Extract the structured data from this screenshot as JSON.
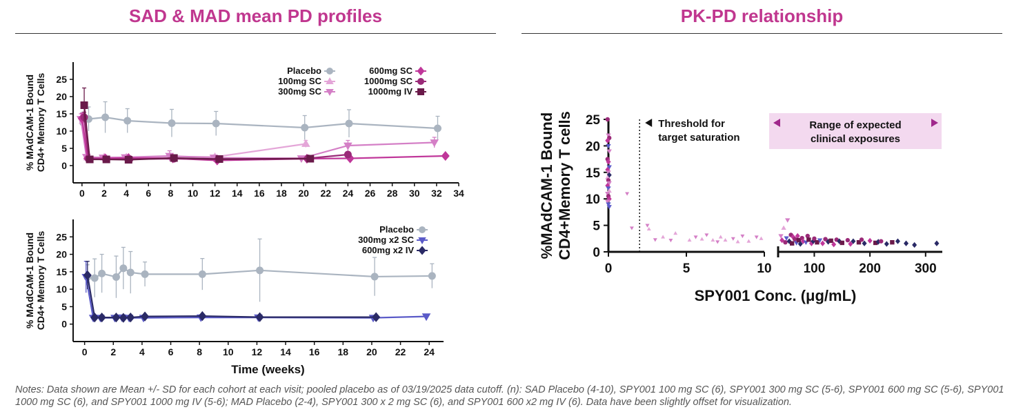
{
  "titles": {
    "left": "SAD & MAD mean PD profiles",
    "right": "PK-PD relationship"
  },
  "colors": {
    "title": "#c0378f",
    "placebo": "#aab4c0",
    "sc100": "#e4a6d8",
    "sc300": "#d47fc6",
    "sc600": "#c0379a",
    "sc1000": "#9a2a78",
    "iv1000": "#6a1a4a",
    "mad300": "#5a5ac8",
    "mad600": "#2a2a66",
    "band": "#f3d9ef",
    "band_arrow": "#a0288c"
  },
  "notes": "Notes: Data shown are Mean +/- SD for each cohort at each visit; pooled placebo as of 03/19/2025 data cutoff. (n): SAD Placebo (4-10), SPY001 100 mg SC (6), SPY001 300 mg SC (5-6), SPY001 600 mg SC (5-6), SPY001 1000 mg SC (6), and SPY001 1000 mg IV (5-6); MAD Placebo (2-4), SPY001 300 x 2 mg SC (6), and SPY001 600 x2 mg IV (6). Data have been slightly offset for visualization.",
  "chart_data": [
    {
      "id": "sad",
      "type": "line",
      "title": "SAD & MAD mean PD profiles",
      "ylabel_line1": "% MAdCAM-1 Bound",
      "ylabel_line2": "CD4+ Memory T Cells",
      "xlabel": "",
      "xlim": [
        -0.8,
        34
      ],
      "ylim": [
        -5,
        30
      ],
      "x_ticks": [
        0,
        2,
        4,
        6,
        8,
        10,
        12,
        14,
        16,
        18,
        20,
        22,
        24,
        26,
        28,
        30,
        32,
        34
      ],
      "y_ticks": [
        0,
        5,
        10,
        15,
        20,
        25
      ],
      "legend": [
        {
          "label": "Placebo",
          "series": "placebo"
        },
        {
          "label": "600mg SC",
          "series": "sc600"
        },
        {
          "label": "100mg SC",
          "series": "sc100"
        },
        {
          "label": "1000mg SC",
          "series": "sc1000"
        },
        {
          "label": "300mg SC",
          "series": "sc300"
        },
        {
          "label": "1000mg IV",
          "series": "iv1000"
        }
      ],
      "series": [
        {
          "key": "placebo",
          "name": "Placebo",
          "marker": "circle",
          "x": [
            0.1,
            0.6,
            2.1,
            4.1,
            8.1,
            12.1,
            20.1,
            24.1,
            32.1
          ],
          "y": [
            12.5,
            13.5,
            14.0,
            13.0,
            12.3,
            12.2,
            11.0,
            12.2,
            10.8
          ],
          "sd": [
            3.0,
            3.5,
            4.5,
            3.5,
            4.0,
            3.5,
            3.5,
            4.0,
            3.5
          ]
        },
        {
          "key": "sc100",
          "name": "100mg SC",
          "marker": "triangle-up",
          "x": [
            0.1,
            0.5,
            2.0,
            4.0,
            8.0,
            12.0,
            20.2
          ],
          "y": [
            13.0,
            2.4,
            2.4,
            2.4,
            2.6,
            2.5,
            6.3
          ],
          "sd": [
            1.5,
            0.6,
            0.6,
            0.6,
            0.8,
            0.6,
            1.0
          ]
        },
        {
          "key": "sc300",
          "name": "300mg SC",
          "marker": "triangle-down",
          "x": [
            -0.1,
            0.4,
            1.9,
            3.9,
            7.9,
            11.9,
            19.8,
            24.0,
            31.8
          ],
          "y": [
            13.5,
            2.5,
            2.3,
            2.4,
            2.8,
            2.3,
            2.1,
            5.8,
            6.7
          ],
          "sd": [
            1.5,
            0.6,
            0.6,
            0.5,
            1.5,
            0.6,
            0.5,
            1.5,
            1.5
          ]
        },
        {
          "key": "sc600",
          "name": "600mg SC",
          "marker": "diamond",
          "x": [
            0.0,
            0.5,
            2.1,
            4.2,
            8.2,
            12.2,
            20.3,
            24.2,
            32.8
          ],
          "y": [
            13.7,
            2.1,
            2.1,
            2.2,
            2.1,
            1.5,
            2.0,
            2.1,
            2.8
          ],
          "sd": [
            1.5,
            0.5,
            0.5,
            0.5,
            0.5,
            0.5,
            0.5,
            0.5,
            0.5
          ]
        },
        {
          "key": "sc1000",
          "name": "1000mg SC",
          "marker": "circle",
          "x": [
            0.2,
            0.6,
            2.2,
            4.3,
            8.3,
            12.3,
            20.4,
            24.0
          ],
          "y": [
            14.0,
            1.9,
            1.8,
            1.9,
            2.0,
            1.8,
            2.1,
            3.2
          ],
          "sd": [
            1.5,
            0.5,
            0.5,
            0.5,
            0.5,
            0.5,
            0.5,
            0.8
          ]
        },
        {
          "key": "iv1000",
          "name": "1000mg IV",
          "marker": "square",
          "x": [
            0.2,
            0.7,
            2.2,
            4.2,
            8.3,
            12.4,
            20.6
          ],
          "y": [
            17.5,
            1.8,
            1.8,
            1.7,
            2.2,
            1.9,
            2.0
          ],
          "sd": [
            5.0,
            0.5,
            0.5,
            0.5,
            0.5,
            0.5,
            0.5
          ]
        }
      ]
    },
    {
      "id": "mad",
      "type": "line",
      "title": "",
      "ylabel_line1": "% MAdCAM-1 Bound",
      "ylabel_line2": "CD4+ Memory T Cells",
      "xlabel": "Time (weeks)",
      "xlim": [
        -0.8,
        25
      ],
      "ylim": [
        -5,
        30
      ],
      "x_ticks": [
        0,
        2,
        4,
        6,
        8,
        10,
        12,
        14,
        16,
        18,
        20,
        22,
        24
      ],
      "y_ticks": [
        0,
        5,
        10,
        15,
        20,
        25
      ],
      "legend": [
        {
          "label": "Placebo",
          "series": "placebo"
        },
        {
          "label": "300mg x2 SC",
          "series": "mad300"
        },
        {
          "label": "600mg x2 IV",
          "series": "mad600"
        }
      ],
      "series": [
        {
          "key": "placebo",
          "name": "Placebo",
          "marker": "circle",
          "x": [
            0.2,
            0.7,
            1.2,
            2.2,
            2.7,
            3.2,
            4.2,
            8.2,
            12.2,
            20.2,
            24.2
          ],
          "y": [
            13.5,
            13.2,
            14.5,
            13.5,
            16.0,
            14.8,
            14.3,
            14.3,
            15.4,
            13.6,
            13.8
          ],
          "sd": [
            3.5,
            5.5,
            5.5,
            6.0,
            6.0,
            6.0,
            3.5,
            4.5,
            9.0,
            5.5,
            3.5
          ]
        },
        {
          "key": "mad300",
          "name": "300mg x2 SC",
          "marker": "triangle-down",
          "x": [
            0.1,
            0.6,
            1.1,
            2.1,
            2.6,
            3.1,
            4.1,
            8.1,
            12.1,
            20.1,
            23.8
          ],
          "y": [
            13.5,
            1.8,
            1.8,
            1.8,
            1.9,
            1.8,
            1.8,
            1.9,
            1.9,
            1.8,
            2.2
          ],
          "sd": [
            4.5,
            0.5,
            0.5,
            0.5,
            0.5,
            0.5,
            0.5,
            0.5,
            0.5,
            0.5,
            0.5
          ]
        },
        {
          "key": "mad600",
          "name": "600mg x2 IV",
          "marker": "diamond",
          "x": [
            0.2,
            0.7,
            1.2,
            2.2,
            2.7,
            3.2,
            4.2,
            8.2,
            12.2,
            20.3
          ],
          "y": [
            14.0,
            1.9,
            1.9,
            1.9,
            1.8,
            1.9,
            2.2,
            2.3,
            2.0,
            2.0
          ],
          "sd": [
            4.0,
            0.5,
            0.5,
            0.5,
            0.5,
            0.5,
            0.5,
            0.5,
            0.5,
            0.5
          ]
        }
      ]
    },
    {
      "id": "pkpd",
      "type": "scatter",
      "title": "PK-PD relationship",
      "ylabel_line1": "%MAdCAM-1 Bound",
      "ylabel_line2": "CD4+Memory T cells",
      "xlabel": "SPY001 Conc. (μg/mL)",
      "segment1": {
        "xlim": [
          0,
          10
        ],
        "x_ticks": [
          0,
          5,
          10
        ]
      },
      "segment2": {
        "xlim": [
          35,
          330
        ],
        "x_ticks": [
          100,
          200,
          300
        ]
      },
      "ylim": [
        0,
        25
      ],
      "y_ticks": [
        0,
        5,
        10,
        15,
        20,
        25
      ],
      "threshold": {
        "x": 2,
        "label_line1": "Threshold for",
        "label_line2": "target saturation"
      },
      "exposure_range": {
        "label_line1": "Range of expected",
        "label_line2": "clinical exposures"
      },
      "points": {
        "near_zero": {
          "x": [
            0,
            0,
            0,
            0,
            0,
            0,
            0,
            0,
            0,
            0,
            0,
            0,
            0,
            0,
            0,
            0,
            0,
            0,
            0,
            0,
            0,
            0,
            0,
            0
          ],
          "y": [
            25,
            22,
            21.5,
            21,
            20,
            19,
            17.5,
            17,
            16,
            15.5,
            15,
            14.5,
            14,
            13.5,
            13,
            12.5,
            12,
            11.5,
            11,
            10.5,
            10,
            9.5,
            9,
            8.5
          ],
          "series": [
            "sc1000",
            "sc300",
            "sc1000",
            "sc600",
            "mad300",
            "sc300",
            "sc1000",
            "sc600",
            "mad300",
            "sc600",
            "sc300",
            "mad600",
            "sc100",
            "sc1000",
            "sc300",
            "sc600",
            "mad300",
            "sc100",
            "sc300",
            "sc1000",
            "sc600",
            "sc300",
            "mad300",
            "mad300"
          ]
        },
        "low_conc": {
          "x": [
            1.2,
            1.5,
            2.5,
            2.6,
            3.0,
            3.5,
            4.0,
            4.3,
            5.2,
            5.6,
            6.0,
            6.3,
            6.7,
            7.0,
            7.2,
            7.5,
            8.0,
            8.3,
            8.6,
            9.0,
            9.5,
            9.8
          ],
          "y": [
            11,
            4.5,
            5,
            4.3,
            2.3,
            2.8,
            2.2,
            3.5,
            2.2,
            2.8,
            2.4,
            3.2,
            2.2,
            1.9,
            2.8,
            2.2,
            2.5,
            1.9,
            3.0,
            2.0,
            2.8,
            2.5
          ],
          "series": [
            "sc300",
            "sc300",
            "sc300",
            "sc100",
            "sc300",
            "sc100",
            "sc300",
            "sc100",
            "sc100",
            "sc300",
            "sc100",
            "sc300",
            "sc100",
            "sc300",
            "sc100",
            "sc100",
            "sc300",
            "sc100",
            "sc300",
            "sc100",
            "sc300",
            "sc100"
          ]
        },
        "high_conc": {
          "x": [
            40,
            42,
            45,
            48,
            50,
            52,
            55,
            58,
            60,
            62,
            65,
            68,
            70,
            72,
            75,
            78,
            80,
            85,
            88,
            90,
            95,
            98,
            100,
            105,
            110,
            115,
            120,
            125,
            130,
            135,
            140,
            145,
            150,
            160,
            165,
            170,
            180,
            185,
            190,
            200,
            210,
            215,
            220,
            230,
            240,
            250,
            265,
            280,
            320
          ],
          "y": [
            3.0,
            2.2,
            4.5,
            1.8,
            2.6,
            6.0,
            2.0,
            3.2,
            1.6,
            2.8,
            2.4,
            1.7,
            3.0,
            2.2,
            1.5,
            2.6,
            2.0,
            1.8,
            3.0,
            2.3,
            1.6,
            2.0,
            2.5,
            1.8,
            2.2,
            1.6,
            2.4,
            1.9,
            2.1,
            1.4,
            2.3,
            2.0,
            1.7,
            2.2,
            1.5,
            2.0,
            1.8,
            2.3,
            1.6,
            2.1,
            1.7,
            1.9,
            2.0,
            1.5,
            1.8,
            2.0,
            1.6,
            1.3,
            1.6
          ],
          "series": [
            "sc300",
            "sc600",
            "sc100",
            "sc1000",
            "mad300",
            "sc300",
            "mad600",
            "sc1000",
            "iv1000",
            "sc600",
            "sc1000",
            "mad300",
            "sc600",
            "iv1000",
            "mad600",
            "sc1000",
            "sc600",
            "mad300",
            "sc1000",
            "iv1000",
            "sc600",
            "mad600",
            "sc1000",
            "iv1000",
            "mad300",
            "sc600",
            "sc1000",
            "mad600",
            "iv1000",
            "sc600",
            "sc1000",
            "mad600",
            "iv1000",
            "sc1000",
            "sc600",
            "mad600",
            "iv1000",
            "sc1000",
            "mad600",
            "sc600",
            "iv1000",
            "mad600",
            "sc1000",
            "mad600",
            "iv1000",
            "mad600",
            "mad600",
            "mad600",
            "mad600"
          ]
        }
      }
    }
  ]
}
